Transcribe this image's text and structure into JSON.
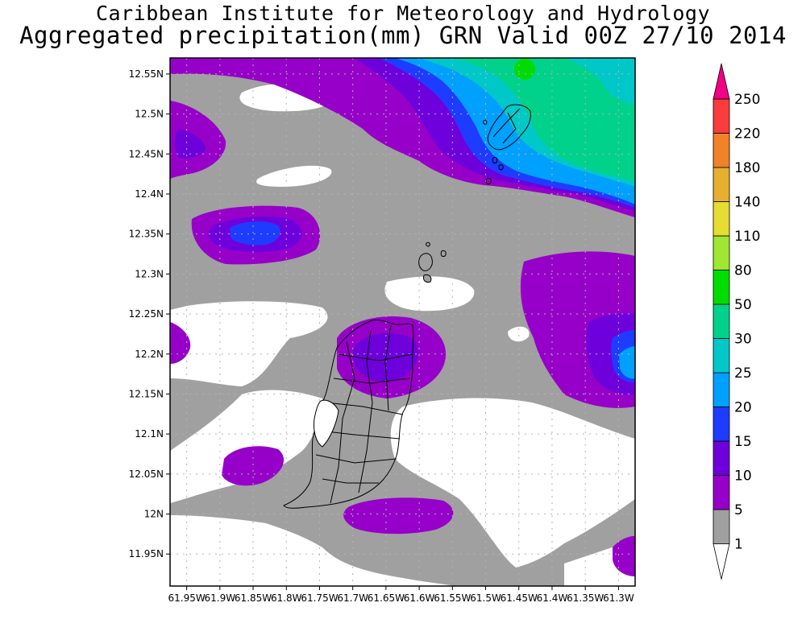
{
  "title": {
    "line1": "Caribbean Institute for Meteorology and Hydrology",
    "line2": "Aggregated precipitation(mm) GRN Valid 00Z 27/10 2014"
  },
  "map": {
    "lat_ticks": [
      "12.55N",
      "12.5N",
      "12.45N",
      "12.4N",
      "12.35N",
      "12.3N",
      "12.25N",
      "12.2N",
      "12.15N",
      "12.1N",
      "12.05N",
      "12N",
      "11.95N"
    ],
    "lon_ticks": [
      "61.95W",
      "61.9W",
      "61.85W",
      "61.8W",
      "61.75W",
      "61.7W",
      "61.65W",
      "61.6W",
      "61.55W",
      "61.5W",
      "61.45W",
      "61.4W",
      "61.35W",
      "61.3W"
    ],
    "lat_range": [
      11.91,
      12.57
    ],
    "lon_range": [
      -61.975,
      -61.275
    ]
  },
  "legend": {
    "levels": [
      "1",
      "5",
      "10",
      "15",
      "20",
      "25",
      "30",
      "50",
      "80",
      "110",
      "140",
      "180",
      "220",
      "250"
    ],
    "colors": [
      "#ffffff",
      "#a0a0a0",
      "#9600c8",
      "#6e00dc",
      "#1e3cff",
      "#00a0ff",
      "#00c8c8",
      "#00d28c",
      "#00dc00",
      "#a0e632",
      "#e6dc32",
      "#e6af2d",
      "#f08228",
      "#fa3c3c",
      "#f00082"
    ],
    "color_mm_ranges": [
      "<1",
      "1-5",
      "5-10",
      "10-15",
      "15-20",
      "20-25",
      "25-30",
      "30-50",
      "50-80",
      "80-110",
      "110-140",
      "140-180",
      "180-220",
      "220-250",
      ">250"
    ]
  }
}
